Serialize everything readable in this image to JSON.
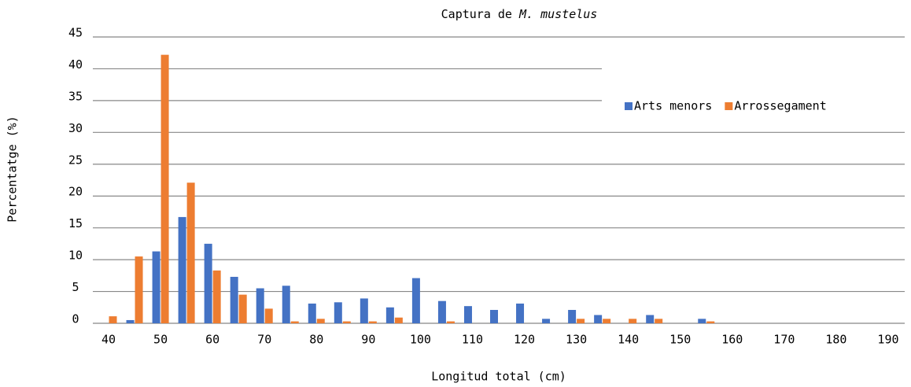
{
  "chart_data": {
    "type": "bar",
    "title": {
      "text": "Captura de",
      "italic": "M. mustelus"
    },
    "xlabel": "Longitud total (cm)",
    "ylabel": "Percentatge (%)",
    "categories": [
      40,
      null,
      50,
      null,
      60,
      null,
      70,
      null,
      80,
      null,
      90,
      null,
      100,
      null,
      110,
      null,
      120,
      null,
      130,
      null,
      140,
      null,
      150,
      null,
      160,
      null,
      170,
      null,
      180,
      null,
      190
    ],
    "series": [
      {
        "name": "Arts menors",
        "color": "#4472c4",
        "values": [
          0,
          0.5,
          11.3,
          16.7,
          12.5,
          7.3,
          5.5,
          5.9,
          3.1,
          3.3,
          3.9,
          2.5,
          7.1,
          3.5,
          2.7,
          2.1,
          3.1,
          0.7,
          2.1,
          1.3,
          0,
          1.3,
          0,
          0.7,
          0,
          0,
          0,
          0,
          0,
          0,
          0
        ]
      },
      {
        "name": "Arrossegament",
        "color": "#ed7d31",
        "values": [
          1.1,
          10.5,
          42.2,
          22.1,
          8.3,
          4.5,
          2.3,
          0.3,
          0.7,
          0.3,
          0.3,
          0.9,
          0,
          0.3,
          0,
          0,
          0,
          0,
          0.7,
          0.7,
          0.7,
          0.7,
          0,
          0.3,
          0,
          0,
          0,
          0,
          0,
          0,
          0
        ]
      }
    ],
    "ylim": [
      0,
      45
    ],
    "yticks": [
      0,
      5,
      10,
      15,
      20,
      25,
      30,
      35,
      40,
      45
    ],
    "grid": true,
    "legend": "top-right"
  }
}
